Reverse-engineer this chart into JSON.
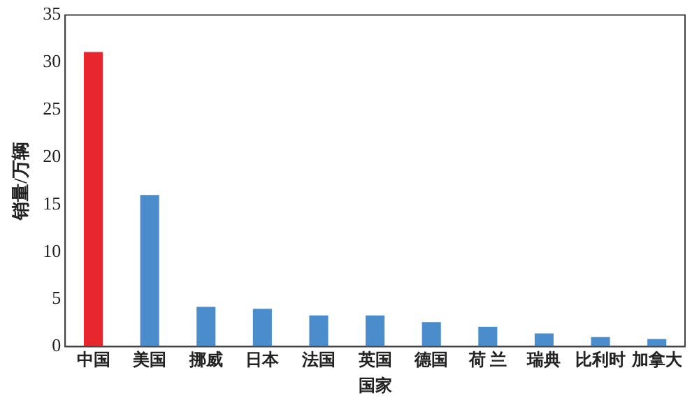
{
  "chart_data": {
    "type": "bar",
    "xlabel": "国家",
    "ylabel": "销量/万辆",
    "categories": [
      "中国",
      "美国",
      "挪威",
      "日本",
      "法国",
      "英国",
      "德国",
      "荷 兰",
      "瑞典",
      "比利时",
      "加拿大"
    ],
    "values": [
      31.1,
      16,
      4.2,
      4.0,
      3.3,
      3.3,
      2.6,
      2.1,
      1.4,
      1.0,
      0.8
    ],
    "colors": [
      "#e8262d",
      "#4a8ccc",
      "#4a8ccc",
      "#4a8ccc",
      "#4a8ccc",
      "#4a8ccc",
      "#4a8ccc",
      "#4a8ccc",
      "#4a8ccc",
      "#4a8ccc",
      "#4a8ccc"
    ],
    "ylim": [
      0,
      35
    ],
    "yticks": [
      0,
      5,
      10,
      15,
      20,
      25,
      30,
      35
    ],
    "grid": false,
    "legend": false
  }
}
